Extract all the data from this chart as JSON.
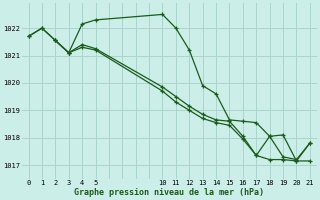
{
  "title": "Graphe pression niveau de la mer (hPa)",
  "background_color": "#cceee8",
  "grid_color": "#aad4cc",
  "line_color": "#1a5c1a",
  "ylim": [
    1016.5,
    1022.9
  ],
  "xlim": [
    -0.5,
    21.5
  ],
  "yticks": [
    1017,
    1018,
    1019,
    1020,
    1021,
    1022
  ],
  "xtick_positions": [
    0,
    1,
    2,
    3,
    4,
    5,
    10,
    11,
    12,
    13,
    14,
    15,
    16,
    17,
    18,
    19,
    20,
    21
  ],
  "xtick_labels": [
    "0",
    "1",
    "2",
    "3",
    "4",
    "5",
    "10",
    "11",
    "12",
    "13",
    "14",
    "15",
    "16",
    "17",
    "18",
    "19",
    "20",
    "21"
  ],
  "series1_x": [
    0,
    1,
    2,
    3,
    4,
    5,
    10,
    11,
    12,
    13,
    14,
    15,
    16,
    17,
    18,
    19,
    20,
    21
  ],
  "series1_y": [
    1021.7,
    1022.0,
    1021.55,
    1021.1,
    1022.15,
    1022.3,
    1022.5,
    1022.0,
    1021.2,
    1019.9,
    1019.6,
    1018.65,
    1018.6,
    1018.55,
    1018.05,
    1017.3,
    1017.2,
    1017.8
  ],
  "series2_x": [
    0,
    1,
    2,
    3,
    4,
    5,
    10,
    11,
    12,
    13,
    14,
    15,
    16,
    17,
    18,
    19,
    20,
    21
  ],
  "series2_y": [
    1021.7,
    1022.0,
    1021.55,
    1021.1,
    1021.4,
    1021.25,
    1019.85,
    1019.5,
    1019.15,
    1018.85,
    1018.65,
    1018.6,
    1018.05,
    1017.35,
    1017.2,
    1017.2,
    1017.15,
    1017.15
  ],
  "series3_x": [
    2,
    3,
    4,
    5,
    10,
    11,
    12,
    13,
    14,
    15,
    16,
    17,
    18,
    19,
    20,
    21
  ],
  "series3_y": [
    1021.55,
    1021.1,
    1021.3,
    1021.2,
    1019.7,
    1019.3,
    1019.0,
    1018.7,
    1018.55,
    1018.45,
    1017.95,
    1017.35,
    1018.05,
    1018.1,
    1017.15,
    1017.8
  ]
}
